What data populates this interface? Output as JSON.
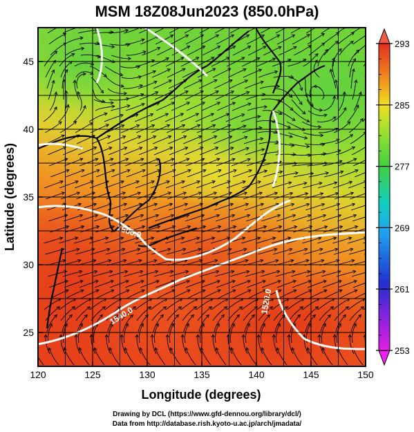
{
  "title": "MSM 18Z08Jun2023 (850.0hPa)",
  "xlabel": "Longitude (degrees)",
  "ylabel": "Latitude  (degrees)",
  "x_ticks": [
    "120",
    "125",
    "130",
    "135",
    "140",
    "145",
    "150"
  ],
  "y_ticks": [
    "25",
    "30",
    "35",
    "40",
    "45"
  ],
  "colorbar": {
    "ticks": [
      "293",
      "285",
      "277",
      "269",
      "261",
      "253"
    ],
    "min": 253,
    "max": 293
  },
  "contour_labels": [
    "1500.0",
    "1520.0",
    "1540.0"
  ],
  "credits": {
    "line1": "Drawing by DCL (https://www.gfd-dennou.org/library/dcl/)",
    "line2": "Data from http://database.rish.kyoto-u.ac.jp/arch/jmadata/"
  },
  "chart_data": {
    "type": "heatmap",
    "field": "temperature (K) at 850.0 hPa with wind streamlines and geopotential height contours",
    "x_range": [
      120,
      150
    ],
    "y_range": [
      22.5,
      47.5
    ],
    "colorbar_range": [
      253,
      293
    ],
    "colors": {
      "warm": "#e4401a",
      "mid": "#f0a020",
      "cool": "#7ed83a",
      "contour": "#ffffff"
    }
  }
}
